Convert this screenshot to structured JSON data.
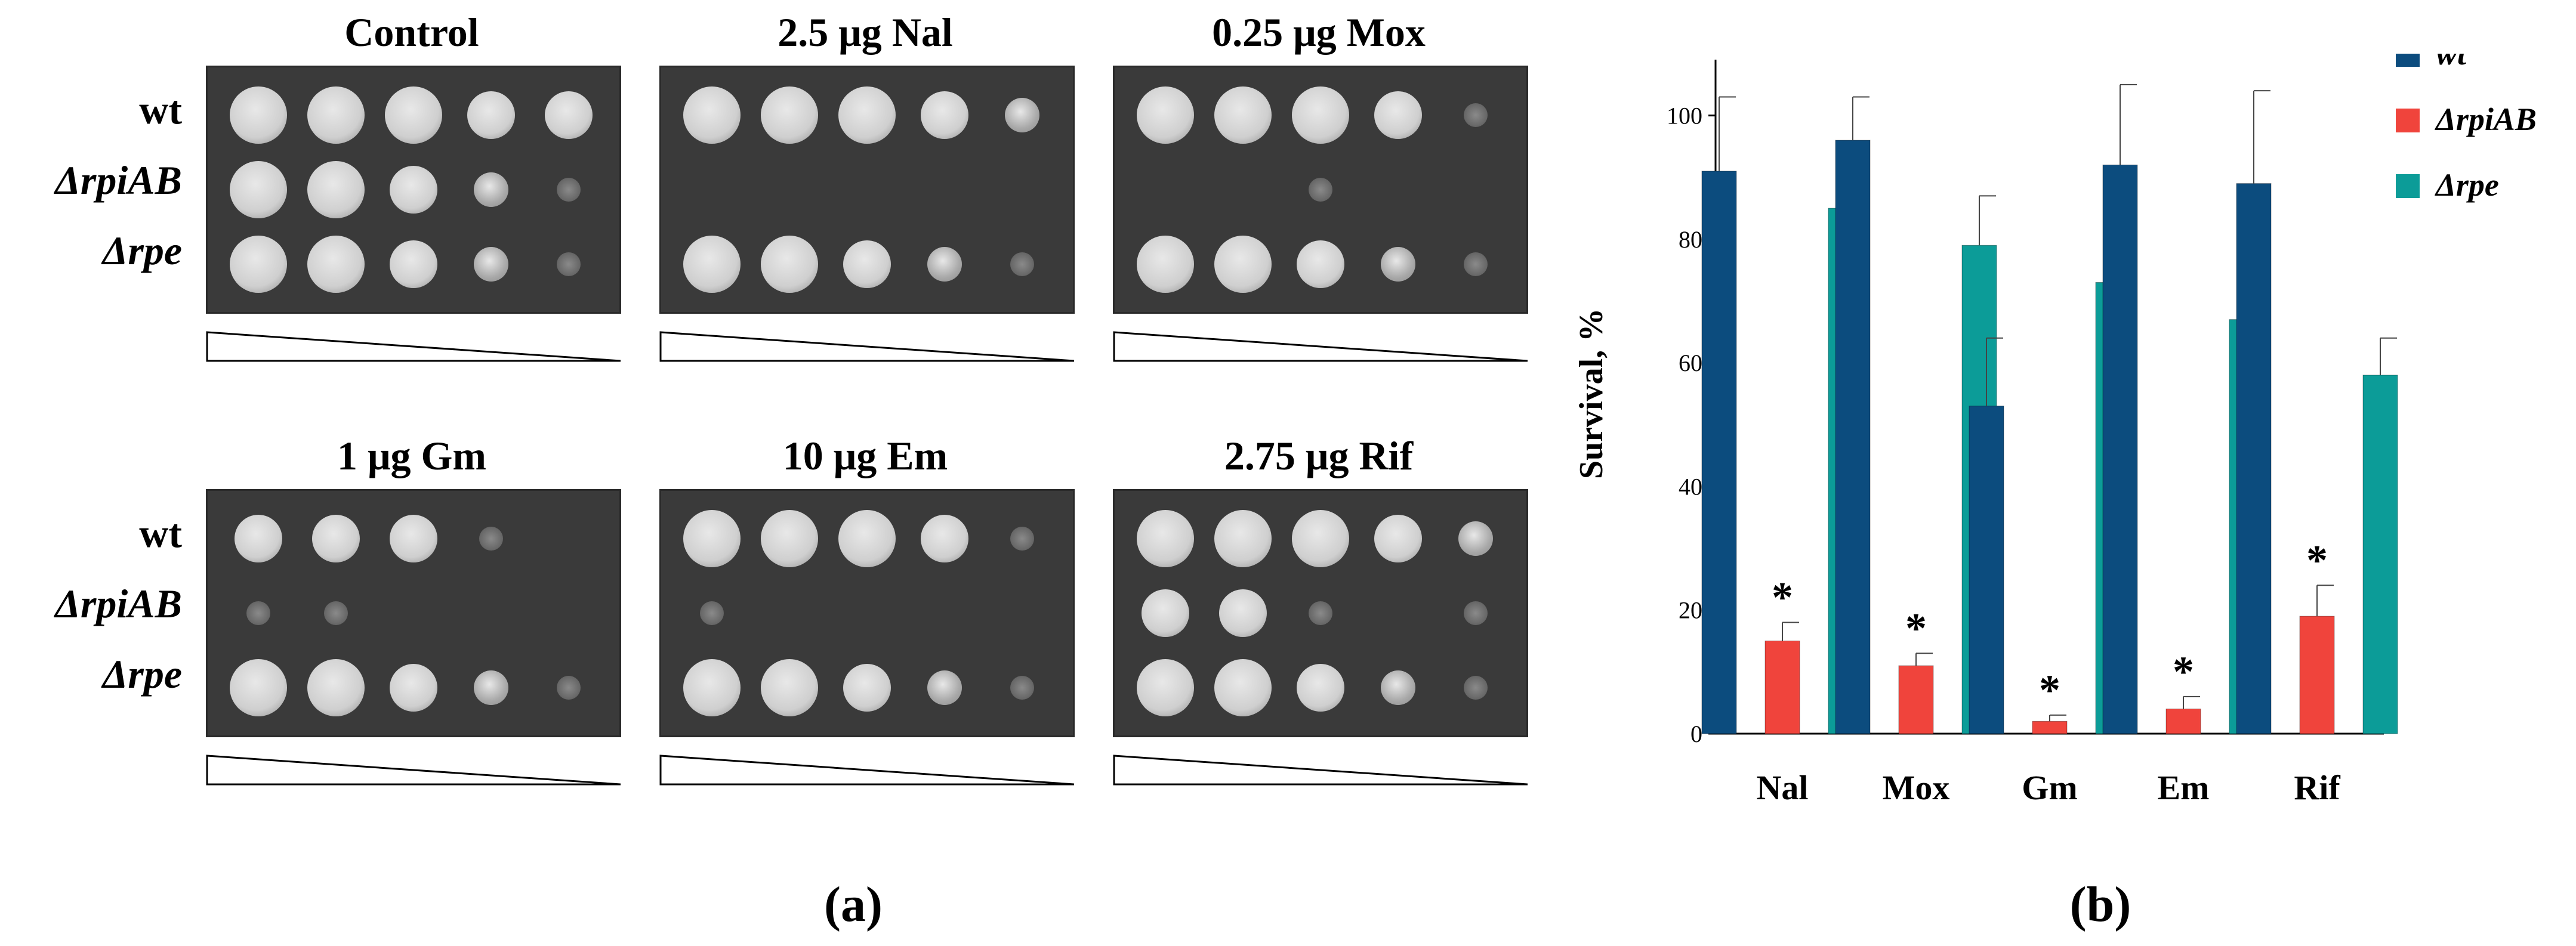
{
  "panel_a": {
    "panels": [
      {
        "title": "Control",
        "rows": [
          "wt",
          "ΔrpiAB",
          "Δrpe"
        ],
        "spots": [
          [
            4,
            4,
            4,
            3,
            3
          ],
          [
            4,
            4,
            3,
            2,
            1
          ],
          [
            4,
            4,
            3,
            2,
            1
          ]
        ]
      },
      {
        "title": "2.5 μg Nal",
        "rows": [],
        "spots": [
          [
            4,
            4,
            4,
            3,
            2
          ],
          [
            0,
            0,
            0,
            0,
            0
          ],
          [
            4,
            4,
            3,
            2,
            1
          ]
        ]
      },
      {
        "title": "0.25 μg Mox",
        "rows": [],
        "spots": [
          [
            4,
            4,
            4,
            3,
            1
          ],
          [
            0,
            0,
            1,
            0,
            0
          ],
          [
            4,
            4,
            3,
            2,
            1
          ]
        ]
      },
      {
        "title": "1 μg Gm",
        "rows": [
          "wt",
          "ΔrpiAB",
          "Δrpe"
        ],
        "spots": [
          [
            3,
            3,
            3,
            1,
            0
          ],
          [
            1,
            1,
            0,
            0,
            0
          ],
          [
            4,
            4,
            3,
            2,
            1
          ]
        ]
      },
      {
        "title": "10 μg Em",
        "rows": [],
        "spots": [
          [
            4,
            4,
            4,
            3,
            1
          ],
          [
            1,
            0,
            0,
            0,
            0
          ],
          [
            4,
            4,
            3,
            2,
            1
          ]
        ]
      },
      {
        "title": "2.75 μg Rif",
        "rows": [],
        "spots": [
          [
            4,
            4,
            4,
            3,
            2
          ],
          [
            3,
            3,
            1,
            0,
            1
          ],
          [
            4,
            4,
            3,
            2,
            1
          ]
        ]
      }
    ],
    "label": "(a)"
  },
  "chart_data": {
    "type": "bar",
    "categories": [
      "Nal",
      "Mox",
      "Gm",
      "Em",
      "Rif"
    ],
    "series": [
      {
        "name": "wt",
        "color": "#0c4c7e",
        "values": [
          91,
          96,
          53,
          92,
          89
        ],
        "errors": [
          12,
          7,
          11,
          13,
          15
        ]
      },
      {
        "name": "ΔrpiAB",
        "color": "#f0443c",
        "values": [
          15,
          11,
          2,
          4,
          19
        ],
        "errors": [
          3,
          2,
          1,
          2,
          5
        ]
      },
      {
        "name": "Δrpe",
        "color": "#0c9c98",
        "values": [
          85,
          79,
          73,
          67,
          58
        ],
        "errors": [
          9,
          8,
          13,
          10,
          6
        ]
      }
    ],
    "significance": [
      "*",
      "*",
      "*",
      "*",
      "*"
    ],
    "ylabel": "Survival, %",
    "yticks": [
      0,
      20,
      40,
      60,
      80,
      100
    ],
    "ylim": [
      0,
      110
    ],
    "legend": "top-right",
    "label": "(b)"
  }
}
